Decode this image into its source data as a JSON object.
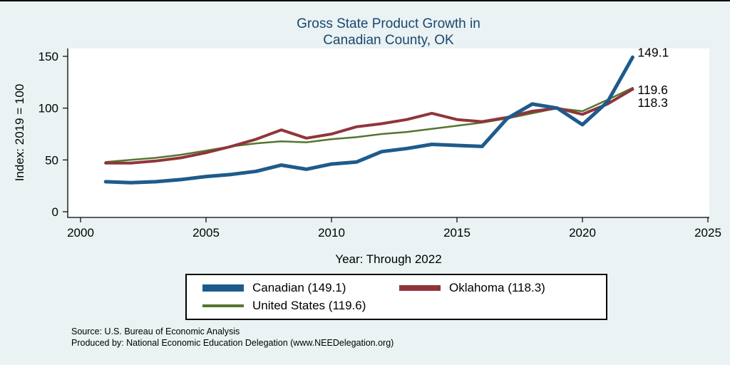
{
  "title": {
    "line1": "Gross State Product Growth in",
    "line2": "Canadian County, OK"
  },
  "chart_data": {
    "type": "line",
    "title": "Gross State Product Growth in Canadian County, OK",
    "xlabel": "Year: Through 2022",
    "ylabel": "Index: 2019 = 100",
    "xlim": [
      2000,
      2025
    ],
    "ylim": [
      0,
      155
    ],
    "xticks": [
      2000,
      2005,
      2010,
      2015,
      2020,
      2025
    ],
    "yticks": [
      0,
      50,
      100,
      150
    ],
    "grid": false,
    "legend_position": "bottom-center",
    "x": [
      2001,
      2002,
      2003,
      2004,
      2005,
      2006,
      2007,
      2008,
      2009,
      2010,
      2011,
      2012,
      2013,
      2014,
      2015,
      2016,
      2017,
      2018,
      2019,
      2020,
      2021,
      2022
    ],
    "series": [
      {
        "name": "Canadian",
        "legend_label": "Canadian  (149.1)",
        "final_value": 149.1,
        "color": "#1d5b8c",
        "line_width": 5,
        "label_dy": -6,
        "values": [
          29,
          28,
          29,
          31,
          34,
          36,
          39,
          45,
          41,
          46,
          48,
          58,
          61,
          65,
          64,
          63,
          90,
          104,
          100,
          84,
          106,
          149.1
        ]
      },
      {
        "name": "Oklahoma",
        "legend_label": "Oklahoma (118.3)",
        "final_value": 118.3,
        "color": "#90353b",
        "line_width": 4,
        "label_dy": 20,
        "values": [
          47,
          47,
          49,
          52,
          57,
          63,
          70,
          79,
          71,
          75,
          82,
          85,
          89,
          95,
          89,
          87,
          91,
          97,
          100,
          94,
          104,
          118.3
        ]
      },
      {
        "name": "United States",
        "legend_label": "United States (119.6)",
        "final_value": 119.6,
        "color": "#55752f",
        "line_width": 2.5,
        "label_dy": 4,
        "values": [
          48,
          50,
          52,
          55,
          59,
          63,
          66,
          68,
          67,
          70,
          72,
          75,
          77,
          80,
          83,
          86,
          90,
          95,
          100,
          97,
          108,
          119.6
        ]
      }
    ],
    "end_labels": [
      "149.1",
      "119.6",
      "118.3"
    ]
  },
  "source": {
    "line1": "Source: U.S. Bureau of Economic Analysis",
    "line2": "Produced by: National Economic Education Delegation (www.NEEDelegation.org)"
  },
  "colors": {
    "background": "#eaf2f3",
    "plot_background": "#ffffff",
    "title": "#1a476f",
    "axis": "#000000"
  }
}
